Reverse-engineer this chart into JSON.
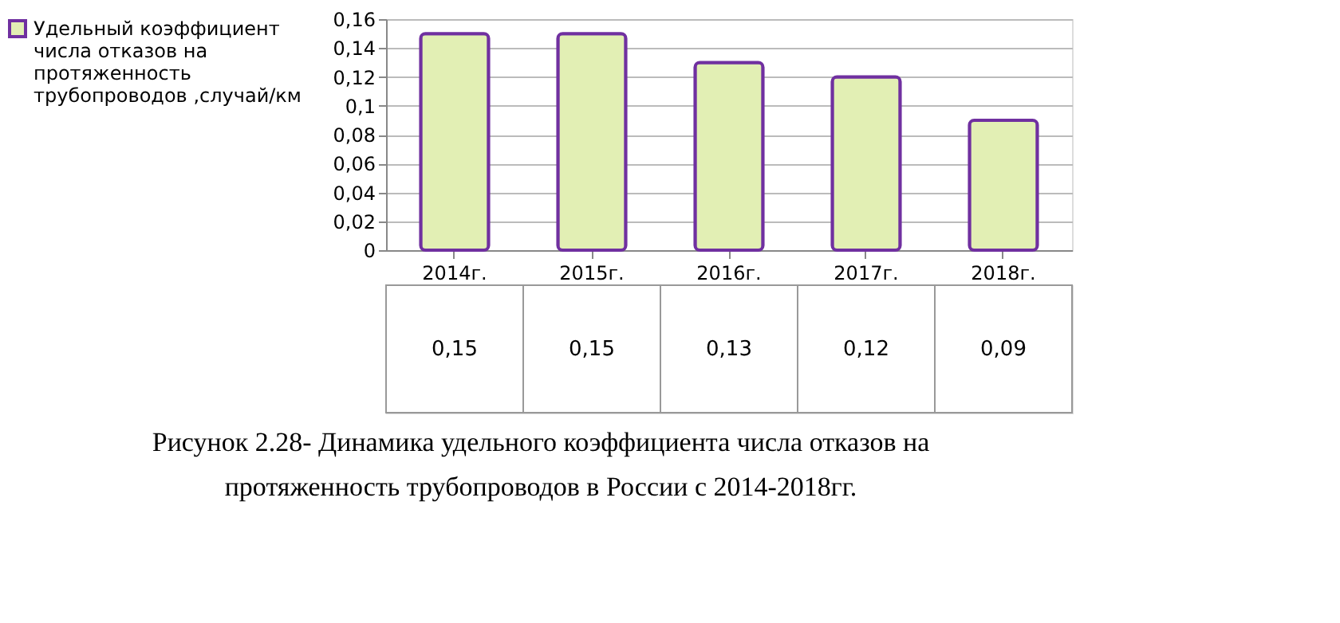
{
  "chart_data": {
    "type": "bar",
    "categories": [
      "2014г.",
      "2015г.",
      "2016г.",
      "2017г.",
      "2018г."
    ],
    "series": [
      {
        "name": "Удельный коэффициент числа отказов на протяженность трубопроводов ,случай/км",
        "color": "#e2efb4",
        "values": [
          0.15,
          0.15,
          0.13,
          0.12,
          0.09
        ],
        "value_labels": [
          "0,15",
          "0,15",
          "0,13",
          "0,12",
          "0,09"
        ]
      }
    ],
    "ylim": [
      0,
      0.16
    ],
    "yticks": [
      {
        "value": 0,
        "label": "0"
      },
      {
        "value": 0.02,
        "label": "0,02"
      },
      {
        "value": 0.04,
        "label": "0,04"
      },
      {
        "value": 0.06,
        "label": "0,06"
      },
      {
        "value": 0.08,
        "label": "0,08"
      },
      {
        "value": 0.1,
        "label": "0,1"
      },
      {
        "value": 0.12,
        "label": "0,12"
      },
      {
        "value": 0.14,
        "label": "0,14"
      },
      {
        "value": 0.16,
        "label": "0,16"
      }
    ],
    "grid": "y",
    "legend": "left",
    "annotations": [
      "Рисунок 2.28- Динамика удельного коэффициента числа отказов на протяженность трубопроводов в России с 2014-2018гг."
    ]
  }
}
